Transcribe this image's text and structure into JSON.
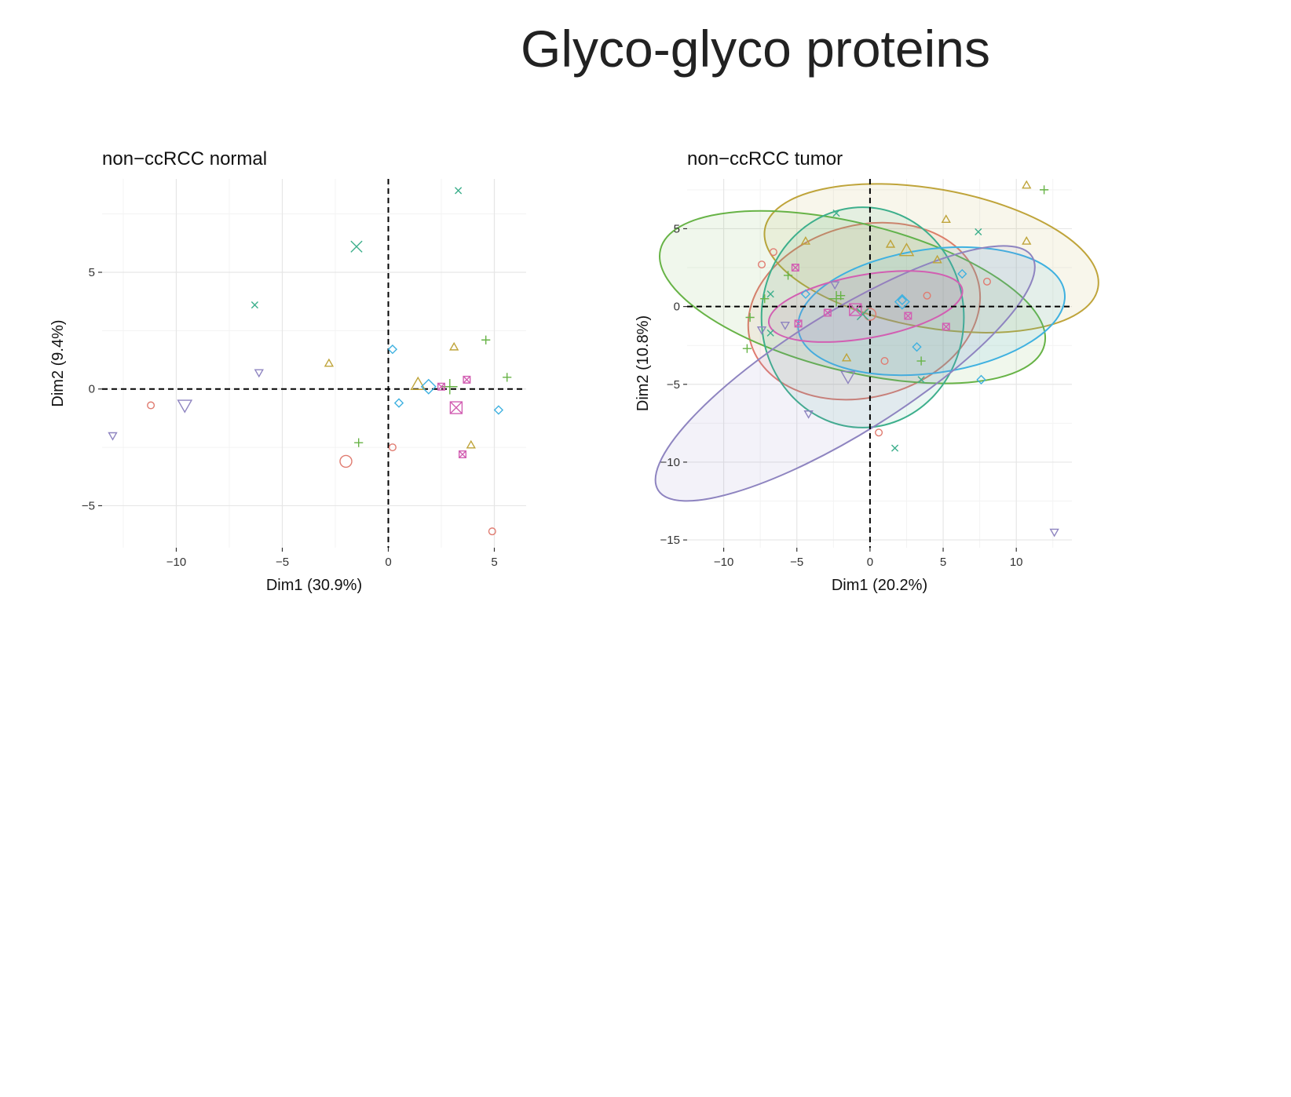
{
  "title": "Glyco-glyco proteins",
  "colors": {
    "red": "#E07B70",
    "olive": "#BFA43A",
    "green": "#67B346",
    "teal": "#3DAF8C",
    "blue": "#3FB1E0",
    "purple": "#8E84C0",
    "pink": "#D25FB2"
  },
  "chart_data": [
    {
      "type": "scatter",
      "title": "non−ccRCC normal",
      "xlabel": "Dim1 (30.9%)",
      "ylabel": "Dim2 (9.4%)",
      "xlim": [
        -13.5,
        6.5
      ],
      "ylim": [
        -6.8,
        9.0
      ],
      "xticks": [
        -10,
        -5,
        0,
        5
      ],
      "yticks": [
        -5,
        0,
        5
      ],
      "xtick_labels": [
        "−10",
        "−5",
        "0",
        "5"
      ],
      "ytick_labels": [
        "−5",
        "0",
        "5"
      ],
      "grid": true,
      "reference_lines": {
        "x": 0,
        "y": 0,
        "style": "dashed"
      },
      "series": [
        {
          "color": "red",
          "shape": "circle",
          "points": [
            [
              -11.2,
              -0.7
            ],
            [
              0.2,
              -2.5
            ],
            [
              4.9,
              -6.1
            ]
          ],
          "centroid": [
            -2.0,
            -3.1
          ]
        },
        {
          "color": "olive",
          "shape": "triangle-up",
          "points": [
            [
              -2.8,
              1.1
            ],
            [
              3.1,
              1.8
            ],
            [
              3.9,
              -2.4
            ]
          ],
          "centroid": [
            1.4,
            0.2
          ]
        },
        {
          "color": "green",
          "shape": "plus",
          "points": [
            [
              -1.4,
              -2.3
            ],
            [
              4.6,
              2.1
            ],
            [
              5.6,
              0.5
            ]
          ],
          "centroid": [
            2.9,
            0.1
          ]
        },
        {
          "color": "teal",
          "shape": "cross",
          "points": [
            [
              -6.3,
              3.6
            ],
            [
              3.3,
              8.5
            ]
          ],
          "centroid": [
            -1.5,
            6.1
          ]
        },
        {
          "color": "blue",
          "shape": "diamond",
          "points": [
            [
              0.2,
              1.7
            ],
            [
              0.5,
              -0.6
            ],
            [
              5.2,
              -0.9
            ]
          ],
          "centroid": [
            1.9,
            0.1
          ]
        },
        {
          "color": "purple",
          "shape": "triangle-down",
          "points": [
            [
              -6.1,
              0.7
            ],
            [
              -13.0,
              -2.0
            ]
          ],
          "centroid": [
            -9.6,
            -0.7
          ]
        },
        {
          "color": "pink",
          "shape": "boxed-x",
          "points": [
            [
              2.5,
              0.1
            ],
            [
              3.7,
              0.4
            ],
            [
              3.5,
              -2.8
            ]
          ],
          "centroid": [
            3.2,
            -0.8
          ]
        }
      ]
    },
    {
      "type": "scatter",
      "title": "non−ccRCC tumor",
      "xlabel": "Dim1 (20.2%)",
      "ylabel": "Dim2 (10.8%)",
      "xlim": [
        -12.5,
        13.8
      ],
      "ylim": [
        -15.5,
        8.2
      ],
      "xticks": [
        -10,
        -5,
        0,
        5,
        10
      ],
      "yticks": [
        -15,
        -10,
        -5,
        0,
        5
      ],
      "xtick_labels": [
        "−10",
        "−5",
        "0",
        "5",
        "10"
      ],
      "ytick_labels": [
        "−15",
        "−10",
        "−5",
        "0",
        "5"
      ],
      "grid": true,
      "reference_lines": {
        "x": 0,
        "y": 0,
        "style": "dashed"
      },
      "series": [
        {
          "color": "red",
          "shape": "circle",
          "points": [
            [
              -7.4,
              2.7
            ],
            [
              -6.6,
              3.5
            ],
            [
              1.0,
              -3.5
            ],
            [
              3.9,
              0.7
            ],
            [
              8.0,
              1.6
            ],
            [
              0.6,
              -8.1
            ]
          ],
          "centroid": [
            0.0,
            -0.5
          ],
          "ellipse": {
            "cx": -0.4,
            "cy": -0.3,
            "rx": 7.8,
            "ry": 5.7,
            "angle": -15
          }
        },
        {
          "color": "olive",
          "shape": "triangle-up",
          "points": [
            [
              -4.4,
              4.2
            ],
            [
              1.4,
              4.0
            ],
            [
              5.2,
              5.6
            ],
            [
              10.7,
              7.8
            ],
            [
              10.7,
              4.2
            ],
            [
              -1.6,
              -3.3
            ],
            [
              4.6,
              3.0
            ]
          ],
          "centroid": [
            2.5,
            3.6
          ],
          "ellipse": {
            "cx": 4.2,
            "cy": 3.1,
            "rx": 11.2,
            "ry": 4.6,
            "angle": 10
          }
        },
        {
          "color": "green",
          "shape": "plus",
          "points": [
            [
              -8.2,
              -0.7
            ],
            [
              -8.4,
              -2.7
            ],
            [
              -7.2,
              0.5
            ],
            [
              -5.6,
              2.0
            ],
            [
              -2.0,
              0.7
            ],
            [
              3.5,
              -3.5
            ],
            [
              11.9,
              7.5
            ]
          ],
          "centroid": [
            -2.3,
            0.5
          ],
          "ellipse": {
            "cx": -1.2,
            "cy": 0.6,
            "rx": 13.1,
            "ry": 4.9,
            "angle": 14
          }
        },
        {
          "color": "teal",
          "shape": "cross",
          "points": [
            [
              -6.8,
              0.8
            ],
            [
              -6.8,
              -1.7
            ],
            [
              -2.3,
              6.0
            ],
            [
              3.5,
              -4.7
            ],
            [
              7.4,
              4.8
            ],
            [
              1.7,
              -9.1
            ]
          ],
          "centroid": [
            -0.5,
            -0.5
          ],
          "ellipse": {
            "cx": -0.5,
            "cy": -0.7,
            "rx": 6.7,
            "ry": 7.3,
            "angle": 0
          }
        },
        {
          "color": "blue",
          "shape": "diamond",
          "points": [
            [
              -4.4,
              0.8
            ],
            [
              3.2,
              -2.6
            ],
            [
              6.3,
              2.1
            ],
            [
              7.6,
              -4.7
            ],
            [
              2.2,
              0.4
            ]
          ],
          "centroid": [
            2.2,
            0.3
          ],
          "ellipse": {
            "cx": 4.2,
            "cy": -0.3,
            "rx": 8.9,
            "ry": 4.1,
            "angle": -8
          }
        },
        {
          "color": "purple",
          "shape": "triangle-down",
          "points": [
            [
              -7.4,
              -1.5
            ],
            [
              -5.8,
              -1.2
            ],
            [
              -2.4,
              1.4
            ],
            [
              -4.2,
              -6.9
            ],
            [
              12.6,
              -14.5
            ]
          ],
          "centroid": [
            -1.5,
            -4.5
          ],
          "ellipse": {
            "cx": -1.7,
            "cy": -4.3,
            "rx": 14.6,
            "ry": 4.0,
            "angle": -32
          }
        },
        {
          "color": "pink",
          "shape": "boxed-x",
          "points": [
            [
              -5.1,
              2.5
            ],
            [
              -4.9,
              -1.1
            ],
            [
              -2.9,
              -0.4
            ],
            [
              2.6,
              -0.6
            ],
            [
              5.2,
              -1.3
            ]
          ],
          "centroid": [
            -1.0,
            -0.2
          ],
          "ellipse": {
            "cx": -0.3,
            "cy": 0.0,
            "rx": 6.5,
            "ry": 2.1,
            "angle": -10
          }
        }
      ]
    }
  ]
}
